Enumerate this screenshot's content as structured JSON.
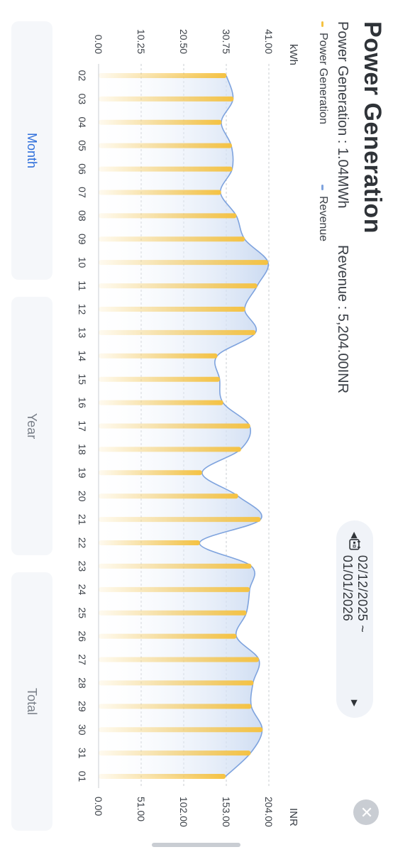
{
  "header": {
    "title": "Power Generation",
    "power_summary": "Power Generation : 1.04MWh",
    "revenue_summary": "Revenue : 5,204.00INR",
    "close_icon": "close-icon"
  },
  "date_range": {
    "text": "02/12/2025 ~ 01/01/2026",
    "prev_icon": "triangle-left-icon",
    "next_icon": "triangle-right-icon",
    "calendar_icon": "calendar-icon"
  },
  "legend": {
    "power": "Power Generation",
    "revenue": "Revenue"
  },
  "units": {
    "left": "kWh",
    "right": "INR"
  },
  "tabs": [
    {
      "label": "Month",
      "active": true
    },
    {
      "label": "Year",
      "active": false
    },
    {
      "label": "Total",
      "active": false
    }
  ],
  "colors": {
    "bar": "#F5C242",
    "revenue_line": "#7EA3DE",
    "revenue_fill": "#C9D9F1",
    "active_tab": "#2F6FDB"
  },
  "chart_data": {
    "type": "bar",
    "categories": [
      "02",
      "03",
      "04",
      "05",
      "06",
      "07",
      "08",
      "09",
      "10",
      "11",
      "12",
      "13",
      "14",
      "15",
      "16",
      "17",
      "18",
      "19",
      "20",
      "21",
      "22",
      "23",
      "24",
      "25",
      "26",
      "27",
      "28",
      "29",
      "30",
      "31",
      "01"
    ],
    "y_left_ticks": [
      "0.00",
      "10.25",
      "20.50",
      "30.75",
      "41.00"
    ],
    "y_right_ticks": [
      "0.00",
      "51.00",
      "102.00",
      "153.00",
      "204.00"
    ],
    "ylim_left": [
      0,
      41
    ],
    "ylim_right": [
      0,
      204
    ],
    "series": [
      {
        "name": "Power Generation",
        "type": "bar",
        "values": [
          30.8,
          32.5,
          29.6,
          32.1,
          32.2,
          29.5,
          33.2,
          35.2,
          40.8,
          38.2,
          35.3,
          37.8,
          28.6,
          29.2,
          30.0,
          36.5,
          34.3,
          24.9,
          33.6,
          39.0,
          24.4,
          36.8,
          36.4,
          35.6,
          33.2,
          38.6,
          37.3,
          36.8,
          39.5,
          36.6,
          30.6
        ]
      },
      {
        "name": "Revenue",
        "type": "area",
        "values": [
          153.0,
          161.0,
          147.0,
          159.0,
          160.0,
          146.0,
          165.0,
          175.0,
          203.0,
          190.0,
          175.0,
          188.0,
          142.0,
          145.0,
          149.0,
          181.0,
          170.0,
          124.0,
          167.0,
          194.0,
          121.0,
          183.0,
          181.0,
          177.0,
          165.0,
          192.0,
          185.0,
          183.0,
          196.0,
          182.0,
          152.0
        ]
      }
    ]
  }
}
